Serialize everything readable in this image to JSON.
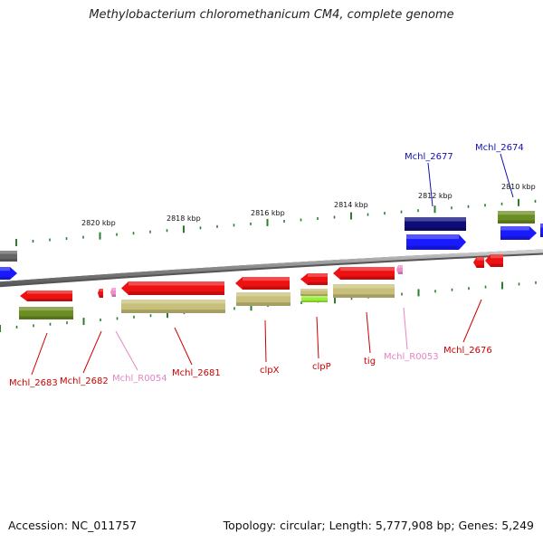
{
  "title": "Methylobacterium chloromethanicum CM4, complete genome",
  "footer": {
    "accession": "Accession: NC_011757",
    "summary": "Topology: circular; Length: 5,777,908 bp; Genes: 5,249"
  },
  "scale_labels": [
    "2820 kbp",
    "2818 kbp",
    "2816 kbp",
    "2814 kbp",
    "2812 kbp",
    "2810 kbp"
  ],
  "colors": {
    "backbone": "#8a8a8a",
    "tick": "#2e7d2e",
    "red_gene": "#ee1111",
    "pink_rna": "#f08cc8",
    "olive": "#6b8e23",
    "khaki": "#c8c07a",
    "lime": "#9aee3a",
    "navy": "#0c0c7a",
    "blue": "#1a1aff",
    "grey": "#666666",
    "label_red": "#cc0000",
    "label_pink": "#e486c2",
    "label_blue": "#1010b0"
  },
  "gene_labels": [
    {
      "name": "Mchl_2683",
      "color": "label_red"
    },
    {
      "name": "Mchl_2682",
      "color": "label_red"
    },
    {
      "name": "Mchl_R0054",
      "color": "label_pink"
    },
    {
      "name": "Mchl_2681",
      "color": "label_red"
    },
    {
      "name": "clpX",
      "color": "label_red"
    },
    {
      "name": "clpP",
      "color": "label_red"
    },
    {
      "name": "tig",
      "color": "label_red"
    },
    {
      "name": "Mchl_R0053",
      "color": "label_pink"
    },
    {
      "name": "Mchl_2676",
      "color": "label_red"
    },
    {
      "name": "Mchl_2677",
      "color": "label_blue"
    },
    {
      "name": "Mchl_2674",
      "color": "label_blue"
    }
  ]
}
